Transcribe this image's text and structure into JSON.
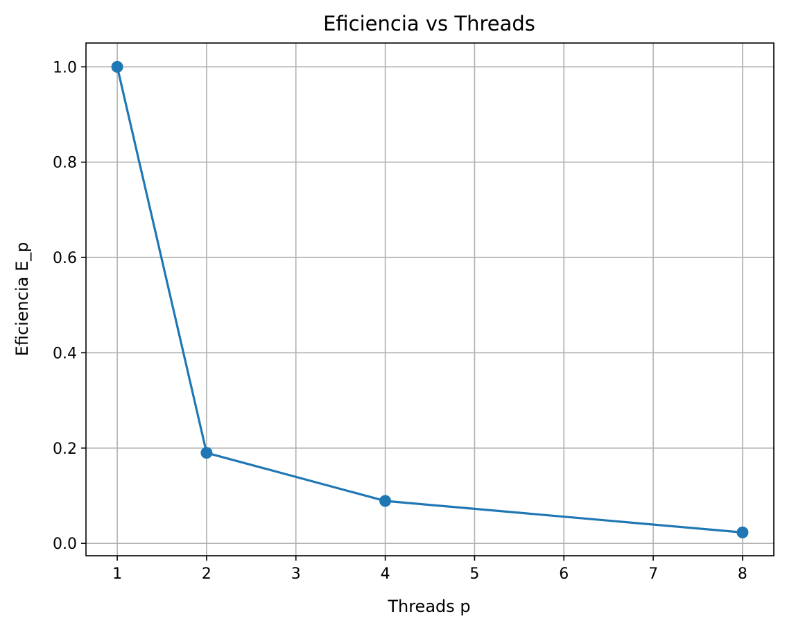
{
  "chart_data": {
    "type": "line",
    "title": "Eficiencia vs Threads",
    "xlabel": "Threads p",
    "ylabel": "Eficiencia E_p",
    "x": [
      1,
      2,
      4,
      8
    ],
    "series": [
      {
        "values": [
          1.0,
          0.19,
          0.089,
          0.023
        ],
        "color": "#1f77b4",
        "marker": "circle"
      }
    ],
    "xlim": [
      0.65,
      8.35
    ],
    "ylim": [
      -0.026,
      1.05
    ],
    "xticks": [
      1,
      2,
      3,
      4,
      5,
      6,
      7,
      8
    ],
    "yticks": [
      0.0,
      0.2,
      0.4,
      0.6,
      0.8,
      1.0
    ],
    "ytick_labels": [
      "0.0",
      "0.2",
      "0.4",
      "0.6",
      "0.8",
      "1.0"
    ],
    "grid": true,
    "legend": "none"
  }
}
